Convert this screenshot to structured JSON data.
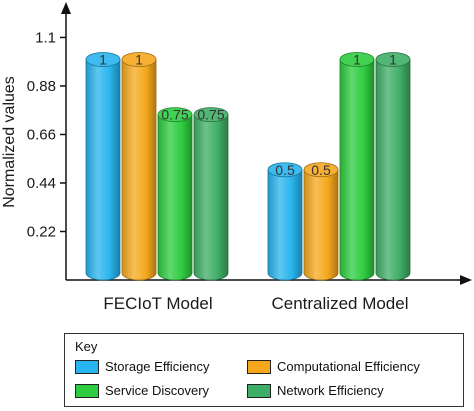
{
  "chart_data": {
    "type": "bar",
    "title": "",
    "xlabel": "",
    "ylabel": "Normalized values",
    "categories": [
      "FECIoT Model",
      "Centralized Model"
    ],
    "yticks": [
      "0.22",
      "0.44",
      "0.66",
      "0.88",
      "1.1"
    ],
    "ylim": [
      0,
      1.1
    ],
    "grid": false,
    "series": [
      {
        "name": "Storage Efficiency",
        "values": [
          1,
          0.5
        ],
        "labels": [
          "1",
          "0.5"
        ],
        "color": "#28b4ee"
      },
      {
        "name": "Computational Efficiency",
        "values": [
          1,
          0.5
        ],
        "labels": [
          "1",
          "0.5"
        ],
        "color": "#f5a81d"
      },
      {
        "name": "Service Discovery",
        "values": [
          0.75,
          1
        ],
        "labels": [
          "0.75",
          "1"
        ],
        "color": "#2ecc40"
      },
      {
        "name": "Network Efficiency",
        "values": [
          0.75,
          1
        ],
        "labels": [
          "0.75",
          "1"
        ],
        "color": "#3fae66"
      }
    ]
  },
  "legend": {
    "title": "Key",
    "items": [
      {
        "label": "Storage Efficiency",
        "color": "#28b4ee"
      },
      {
        "label": "Computational Efficiency",
        "color": "#f5a81d"
      },
      {
        "label": "Service Discovery",
        "color": "#2ecc40"
      },
      {
        "label": "Network Efficiency",
        "color": "#3fae66"
      }
    ]
  }
}
